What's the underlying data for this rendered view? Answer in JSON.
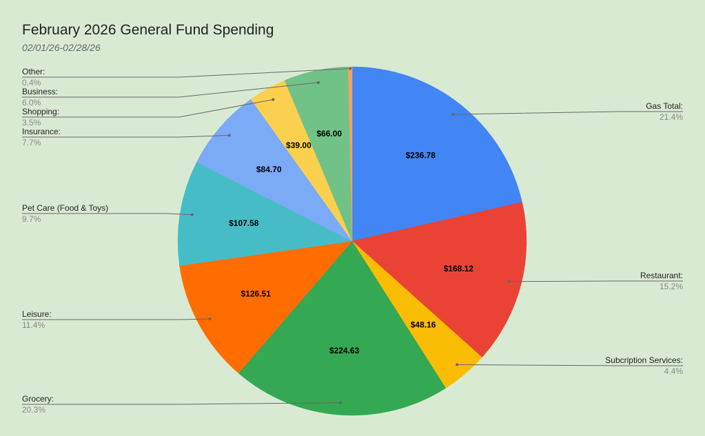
{
  "chart_data": {
    "type": "pie",
    "title": "February 2026 General Fund Spending",
    "subtitle": "02/01/26-02/28/26",
    "start_angle_deg": 0,
    "direction": "clockwise",
    "slices": [
      {
        "name": "Gas Total:",
        "value": 236.78,
        "value_label": "$236.78",
        "percent_label": "21.4%",
        "color": "#4285f4",
        "legend_side": "right"
      },
      {
        "name": "Restaurant:",
        "value": 168.12,
        "value_label": "$168.12",
        "percent_label": "15.2%",
        "color": "#ea4335",
        "legend_side": "right"
      },
      {
        "name": "Subcription Services:",
        "value": 48.16,
        "value_label": "$48.16",
        "percent_label": "4.4%",
        "color": "#fbbc04",
        "legend_side": "right"
      },
      {
        "name": "Grocery:",
        "value": 224.63,
        "value_label": "$224.63",
        "percent_label": "20.3%",
        "color": "#34a853",
        "legend_side": "left"
      },
      {
        "name": "Leisure:",
        "value": 126.51,
        "value_label": "$126.51",
        "percent_label": "11.4%",
        "color": "#ff6d01",
        "legend_side": "left"
      },
      {
        "name": "Pet Care (Food & Toys)",
        "value": 107.58,
        "value_label": "$107.58",
        "percent_label": "9.7%",
        "color": "#46bdc6",
        "legend_side": "left"
      },
      {
        "name": "Insurance:",
        "value": 84.7,
        "value_label": "$84.70",
        "percent_label": "7.7%",
        "color": "#7baaf7",
        "legend_side": "left"
      },
      {
        "name": "Shopping:",
        "value": 39.0,
        "value_label": "$39.00",
        "percent_label": "3.5%",
        "color": "#fcd04f",
        "legend_side": "left"
      },
      {
        "name": "Business:",
        "value": 66.0,
        "value_label": "$66.00",
        "percent_label": "6.0%",
        "color": "#71c287",
        "legend_side": "left"
      },
      {
        "name": "Other:",
        "value": 4.0,
        "value_label": "",
        "percent_label": "0.4%",
        "color": "#f4a261",
        "legend_side": "left"
      }
    ]
  }
}
